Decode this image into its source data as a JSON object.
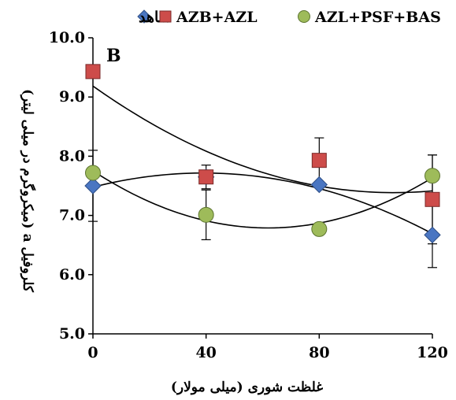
{
  "chart_data": {
    "type": "scatter",
    "panel_label": "B",
    "xlabel": "غلظت شوری (میلی مولار)",
    "ylabel": "کلروفیل a (میکروگرم در میلی لیتر)",
    "x_ticks": [
      "0",
      "40",
      "80",
      "120"
    ],
    "y_ticks": [
      "5.0",
      "6.0",
      "7.0",
      "8.0",
      "9.0",
      "10.0"
    ],
    "xlim": [
      0,
      120
    ],
    "ylim": [
      5.0,
      10.0
    ],
    "grid": false,
    "legend_position": "top",
    "x": [
      0,
      40,
      80,
      120
    ],
    "series": [
      {
        "name": "شاهد",
        "marker": "diamond",
        "color": "#4a76c2",
        "values": [
          7.5,
          7.65,
          7.52,
          6.67
        ],
        "errors": [
          0.6,
          0.0,
          0.0,
          0.55
        ],
        "trend": "polynomial-2"
      },
      {
        "name": "AZB+AZL",
        "marker": "square",
        "color": "#cd4c4a",
        "values": [
          9.43,
          7.65,
          7.93,
          7.27
        ],
        "errors": [
          0.0,
          0.2,
          0.38,
          0.75
        ],
        "trend": "none"
      },
      {
        "name": "AZL+PSF+BAS",
        "marker": "circle",
        "color": "#9ebb5a",
        "values": [
          7.72,
          7.01,
          6.77,
          7.67
        ],
        "errors": [
          0.0,
          0.42,
          0.0,
          0.35
        ],
        "trend": "polynomial-2"
      }
    ]
  }
}
